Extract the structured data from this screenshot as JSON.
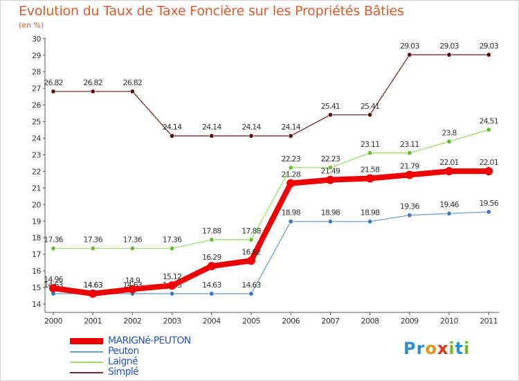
{
  "title": "Evolution du Taux de Taxe Foncière sur les Propriétés Bâties",
  "unit_label": "(en %)",
  "brand": {
    "letters": [
      "P",
      "r",
      "o",
      "x",
      "i",
      "t",
      "i"
    ],
    "colors": [
      "#2a8fd8",
      "#2a8fd8",
      "#e8901c",
      "#e03020",
      "#78b828",
      "#2a8fd8",
      "#78b828"
    ]
  },
  "legend": [
    {
      "label": "MARIGNé-PEUTON",
      "color": "#ee0000",
      "text_color": "#2255cc"
    },
    {
      "label": "Peuton",
      "color": "#6b9ed0",
      "text_color": "#2255cc"
    },
    {
      "label": "Laigné",
      "color": "#99dd66",
      "text_color": "#2255cc"
    },
    {
      "label": "Simplé",
      "color": "#7a2a2a",
      "text_color": "#2255cc"
    }
  ],
  "chart_data": {
    "type": "line",
    "title": "Evolution du Taux de Taxe Foncière sur les Propriétés Bâties",
    "ylabel": "(en %)",
    "xlabel": "",
    "x": [
      "2000",
      "2001",
      "2002",
      "2003",
      "2004",
      "2005",
      "2006",
      "2007",
      "2008",
      "2009",
      "2010",
      "2011"
    ],
    "ylim": [
      14,
      30
    ],
    "yticks": [
      14,
      15,
      16,
      17,
      18,
      19,
      20,
      21,
      22,
      23,
      24,
      25,
      26,
      27,
      28,
      29,
      30
    ],
    "grid": false,
    "series": [
      {
        "name": "Simplé",
        "color": "#7a2a2a",
        "marker": "#5a1010",
        "values": [
          26.82,
          26.82,
          26.82,
          24.14,
          24.14,
          24.14,
          24.14,
          25.41,
          25.41,
          29.03,
          29.03,
          29.03
        ],
        "labels": [
          "26.82",
          "26.82",
          "26.82",
          "24.14",
          "24.14",
          "24.14",
          "24.14",
          "25.41",
          "25.41",
          "29.03",
          "29.03",
          "29.03"
        ]
      },
      {
        "name": "Laigné",
        "color": "#99dd66",
        "marker": "#66bb33",
        "values": [
          17.36,
          17.36,
          17.36,
          17.36,
          17.88,
          17.88,
          22.23,
          22.23,
          23.11,
          23.11,
          23.8,
          24.51
        ],
        "labels": [
          "17.36",
          "17.36",
          "17.36",
          "17.36",
          "17.88",
          "17.88",
          "22.23",
          "22.23",
          "23.11",
          "23.11",
          "23.8",
          "24.51"
        ]
      },
      {
        "name": "Peuton",
        "color": "#6b9ed0",
        "marker": "#3a78bb",
        "values": [
          14.63,
          14.63,
          14.63,
          14.63,
          14.63,
          14.63,
          18.98,
          18.98,
          18.98,
          19.36,
          19.46,
          19.56
        ],
        "labels": [
          "14.63",
          "14.63",
          "14.63",
          "14.63",
          "14.63",
          "14.63",
          "18.98",
          "18.98",
          "18.98",
          "19.36",
          "19.46",
          "19.56"
        ]
      },
      {
        "name": "MARIGNé-PEUTON",
        "color": "#ee0000",
        "marker": "#ee0000",
        "values": [
          14.96,
          14.63,
          14.9,
          15.12,
          16.29,
          16.62,
          21.28,
          21.49,
          21.58,
          21.79,
          22.01,
          22.01
        ],
        "labels": [
          "14.96",
          "14.63",
          "14.9",
          "15.12",
          "16.29",
          "16.62",
          "21.28",
          "21.49",
          "21.58",
          "21.79",
          "22.01",
          "22.01"
        ]
      }
    ]
  }
}
